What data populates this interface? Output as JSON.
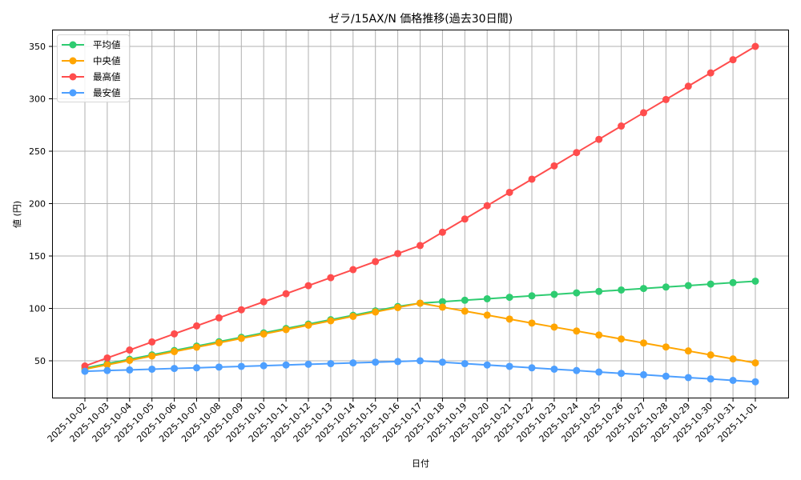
{
  "chart_data": {
    "type": "line",
    "title": "ゼラ/15AX/N 価格推移(過去30日間)",
    "xlabel": "日付",
    "ylabel": "値 (円)",
    "ylim": [
      14,
      366
    ],
    "yticks": [
      50,
      100,
      150,
      200,
      250,
      300,
      350
    ],
    "grid": true,
    "legend_position": "upper left",
    "categories": [
      "2025-10-02",
      "2025-10-03",
      "2025-10-04",
      "2025-10-05",
      "2025-10-06",
      "2025-10-07",
      "2025-10-08",
      "2025-10-09",
      "2025-10-10",
      "2025-10-11",
      "2025-10-12",
      "2025-10-13",
      "2025-10-14",
      "2025-10-15",
      "2025-10-16",
      "2025-10-17",
      "2025-10-18",
      "2025-10-19",
      "2025-10-20",
      "2025-10-21",
      "2025-10-22",
      "2025-10-23",
      "2025-10-24",
      "2025-10-25",
      "2025-10-26",
      "2025-10-27",
      "2025-10-28",
      "2025-10-29",
      "2025-10-30",
      "2025-10-31",
      "2025-11-01"
    ],
    "series": [
      {
        "name": "平均値",
        "color": "#2ecc71",
        "values": [
          43,
          47.2,
          51.4,
          55.6,
          59.8,
          64,
          68.2,
          72.4,
          76.6,
          80.8,
          85,
          89.2,
          93.4,
          97.6,
          101.8,
          105,
          106.4,
          107.8,
          109.2,
          110.6,
          112,
          113.4,
          114.8,
          116.2,
          117.6,
          119,
          120.4,
          121.8,
          123.2,
          124.6,
          126
        ]
      },
      {
        "name": "中央値",
        "color": "#ffa500",
        "values": [
          42,
          46.2,
          50.4,
          54.6,
          58.8,
          63,
          67.2,
          71.4,
          75.6,
          79.8,
          84,
          88.2,
          92.4,
          96.6,
          100.8,
          105,
          101.2,
          97.4,
          93.6,
          89.8,
          86,
          82.2,
          78.4,
          74.6,
          70.8,
          67,
          63.2,
          59.4,
          55.6,
          51.8,
          48
        ]
      },
      {
        "name": "最高値",
        "color": "#ff4d4d",
        "values": [
          45,
          52.7,
          60.3,
          68,
          75.7,
          83.3,
          91,
          98.7,
          106.3,
          114,
          121.7,
          129.3,
          137,
          144.7,
          152.3,
          160,
          172.7,
          185.3,
          198,
          210.7,
          223.3,
          236,
          248.7,
          261.3,
          274,
          286.7,
          299.3,
          312,
          324.7,
          337.3,
          350
        ]
      },
      {
        "name": "最安値",
        "color": "#4d9fff",
        "values": [
          40,
          40.7,
          41.3,
          42,
          42.7,
          43.3,
          44,
          44.7,
          45.3,
          46,
          46.7,
          47.3,
          48,
          48.7,
          49.3,
          50,
          48.7,
          47.3,
          46,
          44.7,
          43.3,
          42,
          40.7,
          39.3,
          38,
          36.7,
          35.3,
          34,
          32.7,
          31.3,
          30
        ]
      }
    ]
  }
}
